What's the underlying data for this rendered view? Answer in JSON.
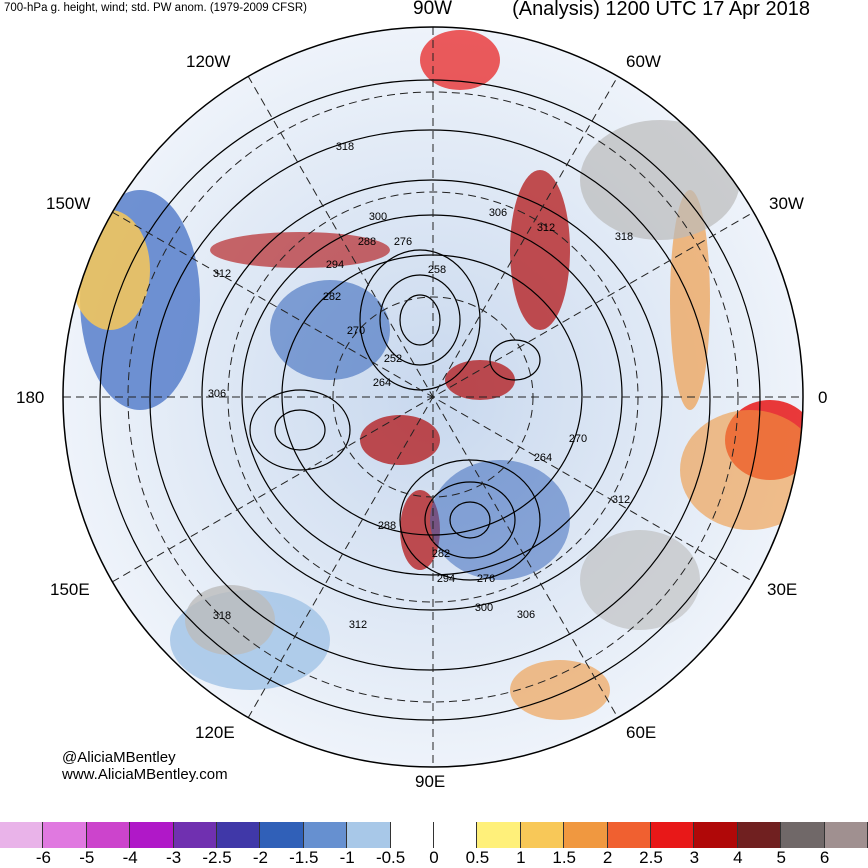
{
  "header": {
    "subtitle": "700-hPa g. height, wind; std. PW anom. (1979-2009 CFSR)",
    "title": "(Analysis) 1200 UTC 17 Apr 2018"
  },
  "map_labels": {
    "lon_90W": "90W",
    "lon_120W": "120W",
    "lon_60W": "60W",
    "lon_150W": "150W",
    "lon_30W": "30W",
    "lon_180": "180",
    "lon_0": "0",
    "lon_150E": "150E",
    "lon_30E": "30E",
    "lon_120E": "120E",
    "lon_60E": "60E",
    "lon_90E": "90E"
  },
  "contour_labels": [
    "318",
    "300",
    "306",
    "312",
    "288",
    "276",
    "294",
    "258",
    "282",
    "270",
    "252",
    "264",
    "306",
    "264",
    "270",
    "312",
    "288",
    "282",
    "294",
    "276",
    "300",
    "306",
    "318",
    "312",
    "318",
    "312"
  ],
  "credits": {
    "twitter": "@AliciaMBentley",
    "website": "www.AliciaMBentley.com"
  },
  "colorbar": {
    "colors": [
      "#e9b3e9",
      "#e079e0",
      "#cc44cc",
      "#b018c8",
      "#7030b0",
      "#4038a8",
      "#3060b8",
      "#6690d0",
      "#a8c8e8",
      "#ffffff",
      "#ffffff",
      "#fff07a",
      "#f8c858",
      "#f09840",
      "#f06030",
      "#e81818",
      "#b00808",
      "#702020",
      "#706868",
      "#a09090"
    ],
    "ticks": [
      "-6",
      "-5",
      "-4",
      "-3",
      "-2.5",
      "-2",
      "-1.5",
      "-1",
      "-0.5",
      "0",
      "0.5",
      "1",
      "1.5",
      "2",
      "2.5",
      "3",
      "4",
      "5",
      "6"
    ]
  }
}
